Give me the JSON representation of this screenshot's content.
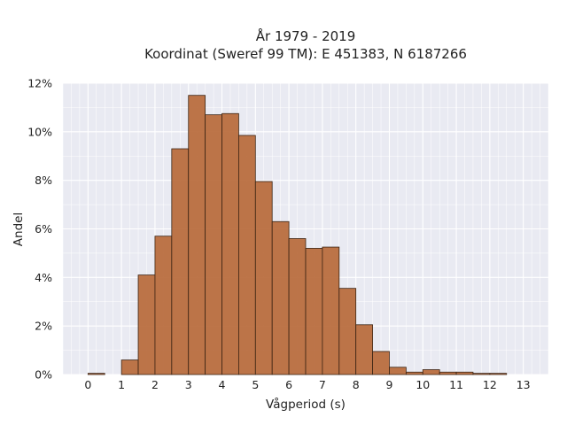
{
  "chart_data": {
    "type": "bar",
    "title_line1": "År 1979 - 2019",
    "title_line2": "Koordinat (Sweref 99 TM): E 451383, N 6187266",
    "xlabel": "Vågperiod (s)",
    "ylabel": "Andel",
    "xlim": [
      -0.75,
      13.75
    ],
    "ylim": [
      0,
      12
    ],
    "bin_width": 0.5,
    "bin_starts": [
      0,
      0.5,
      1,
      1.5,
      2,
      2.5,
      3,
      3.5,
      4,
      4.5,
      5,
      5.5,
      6,
      6.5,
      7,
      7.5,
      8,
      8.5,
      9,
      9.5,
      10,
      10.5,
      11,
      11.5,
      12,
      12.5
    ],
    "values": [
      0.05,
      0.0,
      0.6,
      4.1,
      5.7,
      9.3,
      11.5,
      10.7,
      10.75,
      9.85,
      7.95,
      6.3,
      5.6,
      5.2,
      5.25,
      3.55,
      2.05,
      0.95,
      0.3,
      0.1,
      0.2,
      0.1,
      0.1,
      0.05,
      0.05,
      0.0
    ],
    "x_ticks": [
      0,
      1,
      2,
      3,
      4,
      5,
      6,
      7,
      8,
      9,
      10,
      11,
      12,
      13
    ],
    "x_tick_labels": [
      "0",
      "1",
      "2",
      "3",
      "4",
      "5",
      "6",
      "7",
      "8",
      "9",
      "10",
      "11",
      "12",
      "13"
    ],
    "y_ticks": [
      0,
      2,
      4,
      6,
      8,
      10,
      12
    ],
    "y_tick_labels": [
      "0%",
      "2%",
      "4%",
      "6%",
      "8%",
      "10%",
      "12%"
    ],
    "grid": true,
    "colors": {
      "bar_fill": "#b7693a",
      "bar_stroke": "#3b2414",
      "plot_background": "#e9eaf2",
      "grid": "#ffffff"
    }
  }
}
